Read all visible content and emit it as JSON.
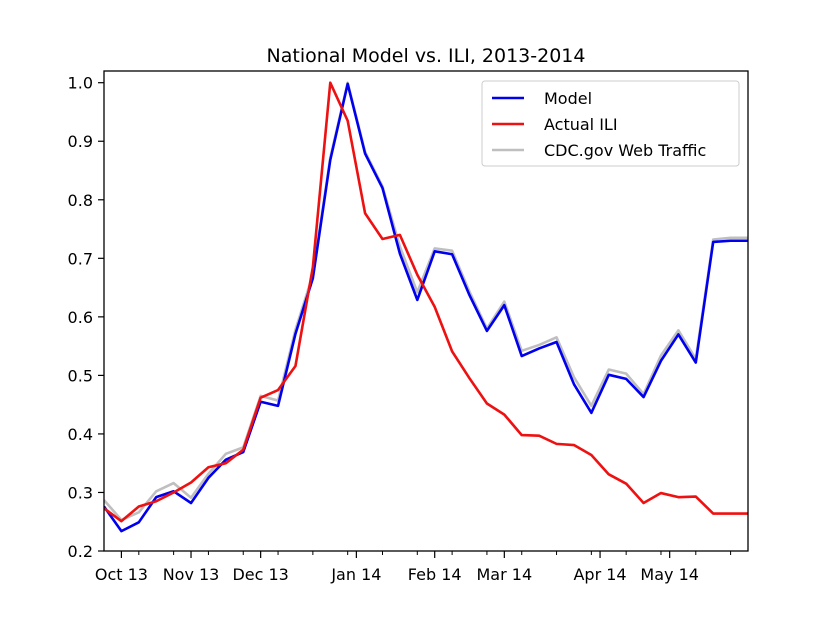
{
  "chart_data": {
    "type": "line",
    "title": "National Model vs. ILI, 2013-2014",
    "xlabel": "",
    "ylabel": "",
    "ylim": [
      0.2,
      1.02
    ],
    "yticks": [
      0.2,
      0.3,
      0.4,
      0.5,
      0.6,
      0.7,
      0.8,
      0.9,
      1.0
    ],
    "ytick_labels": [
      "0.2",
      "0.3",
      "0.4",
      "0.5",
      "0.6",
      "0.7",
      "0.8",
      "0.9",
      "1.0"
    ],
    "x": [
      0,
      1,
      2,
      3,
      4,
      5,
      6,
      7,
      8,
      9,
      10,
      11,
      12,
      13,
      14,
      15,
      16,
      17,
      18,
      19,
      20,
      21,
      22,
      23,
      24,
      25,
      26,
      27,
      28,
      29,
      30,
      31,
      32,
      33,
      34,
      35,
      36,
      37
    ],
    "xlim": [
      0,
      37
    ],
    "minor_ticks": [
      2,
      4,
      6,
      8,
      10,
      12,
      14,
      16,
      18,
      20,
      22,
      24,
      26,
      28,
      30,
      32,
      34,
      36
    ],
    "xticks": [
      {
        "x": 1,
        "label": "Oct 13"
      },
      {
        "x": 5,
        "label": "Nov 13"
      },
      {
        "x": 9,
        "label": "Dec 13"
      },
      {
        "x": 14.5,
        "label": "Jan 14"
      },
      {
        "x": 19,
        "label": "Feb 14"
      },
      {
        "x": 23,
        "label": "Mar 14"
      },
      {
        "x": 28.5,
        "label": "Apr 14"
      },
      {
        "x": 32.5,
        "label": "May 14"
      }
    ],
    "series": [
      {
        "name": "CDC.gov Web Traffic",
        "color": "#bfbfbf",
        "values": [
          0.287,
          0.253,
          0.266,
          0.302,
          0.316,
          0.291,
          0.332,
          0.366,
          0.377,
          0.465,
          0.457,
          0.578,
          0.672,
          0.872,
          1.0,
          0.882,
          0.823,
          0.72,
          0.642,
          0.717,
          0.713,
          0.643,
          0.58,
          0.626,
          0.542,
          0.552,
          0.565,
          0.497,
          0.448,
          0.51,
          0.503,
          0.468,
          0.534,
          0.577,
          0.528,
          0.732,
          0.735,
          0.735
        ]
      },
      {
        "name": "Model",
        "color": "#0000ee",
        "values": [
          0.276,
          0.234,
          0.249,
          0.292,
          0.302,
          0.282,
          0.325,
          0.356,
          0.369,
          0.455,
          0.448,
          0.571,
          0.666,
          0.868,
          0.998,
          0.879,
          0.82,
          0.708,
          0.629,
          0.712,
          0.707,
          0.637,
          0.576,
          0.62,
          0.533,
          0.546,
          0.557,
          0.485,
          0.436,
          0.501,
          0.494,
          0.463,
          0.525,
          0.57,
          0.522,
          0.728,
          0.73,
          0.73
        ]
      },
      {
        "name": "Actual ILI",
        "color": "#ee1111",
        "values": [
          0.273,
          0.251,
          0.276,
          0.285,
          0.3,
          0.317,
          0.343,
          0.35,
          0.373,
          0.462,
          0.475,
          0.516,
          0.685,
          1.0,
          0.935,
          0.777,
          0.733,
          0.74,
          0.672,
          0.617,
          0.541,
          0.495,
          0.452,
          0.433,
          0.398,
          0.397,
          0.383,
          0.381,
          0.364,
          0.331,
          0.315,
          0.282,
          0.299,
          0.292,
          0.293,
          0.264,
          0.264,
          0.264
        ]
      }
    ],
    "legend": {
      "position": "top-right",
      "entries": [
        {
          "label": "Model",
          "color": "#0000ee"
        },
        {
          "label": "Actual ILI",
          "color": "#ee1111"
        },
        {
          "label": "CDC.gov Web Traffic",
          "color": "#bfbfbf"
        }
      ]
    }
  }
}
